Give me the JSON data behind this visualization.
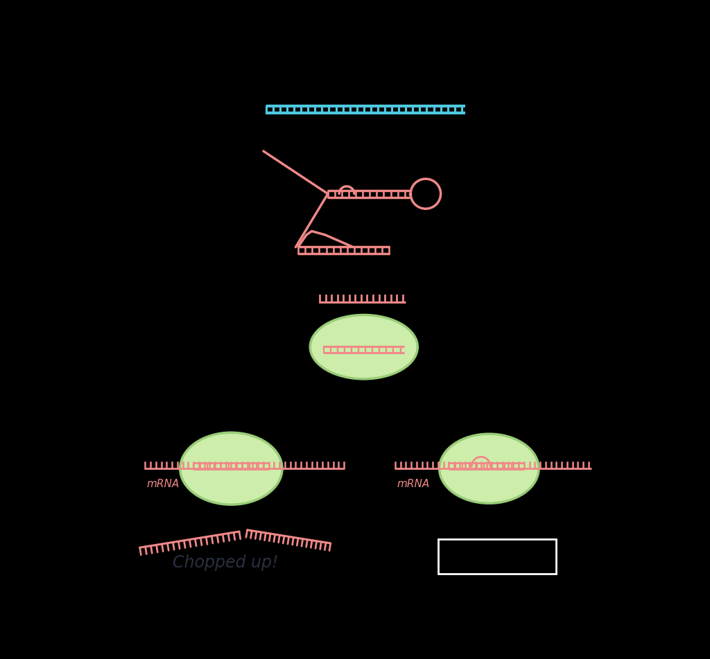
{
  "background_color": "#000000",
  "salmon_color": "#F08888",
  "cyan_color": "#4DC8E0",
  "green_fill": "#CCEEAA",
  "green_edge": "#99CC77",
  "text_color": "#333344",
  "chopped_text": "Chopped up!",
  "mrna_label": "mRNA",
  "figsize": [
    10.24,
    9.51
  ],
  "dpi": 100
}
